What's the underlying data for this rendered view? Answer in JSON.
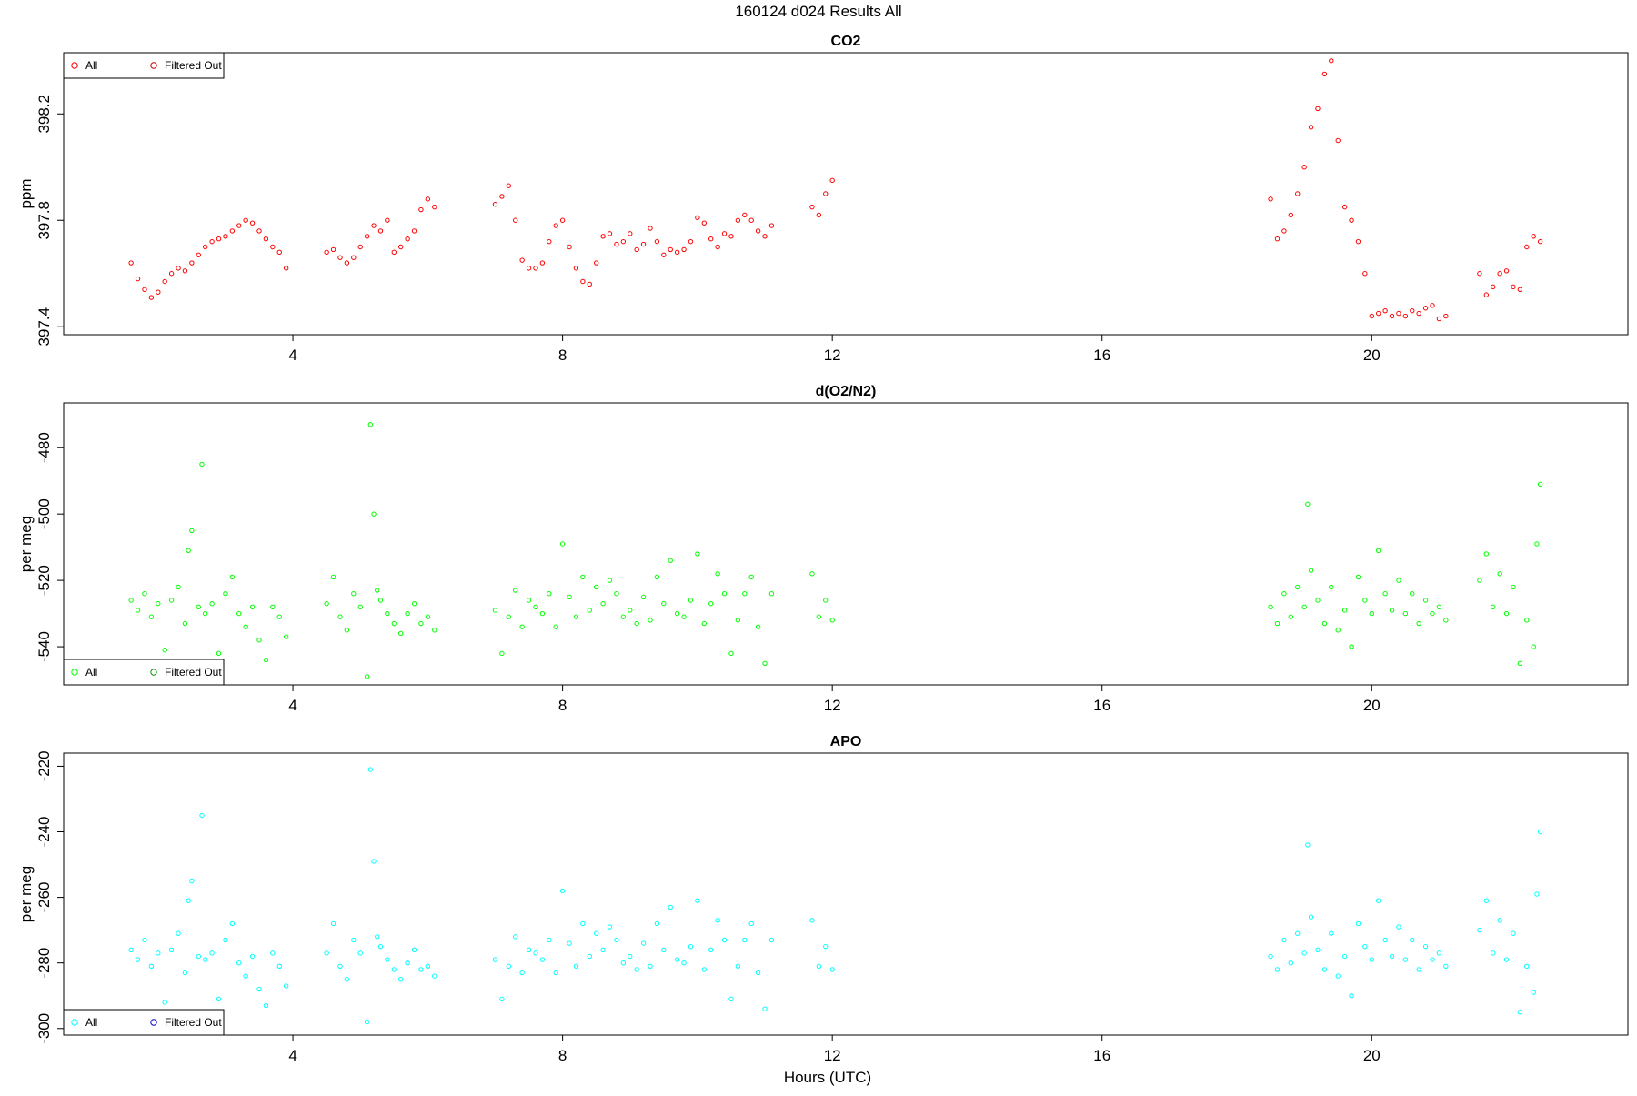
{
  "figure": {
    "title": "160124   d024   Results All",
    "xlabel": "Hours (UTC)"
  },
  "chart_data": [
    {
      "type": "scatter",
      "title": "CO2",
      "xlabel": "",
      "ylabel": "ppm",
      "xlim": [
        0.6,
        23.8
      ],
      "ylim": [
        397.37,
        398.43
      ],
      "xticks": [
        "4",
        "8",
        "12",
        "16",
        "20"
      ],
      "yticks": [
        "397.4",
        "397.8",
        "398.2"
      ],
      "legend": {
        "position": "top-left",
        "entries": [
          "All",
          "Filtered Out"
        ]
      },
      "series": [
        {
          "name": "All",
          "color": "#ff0000",
          "x": [
            1.6,
            1.7,
            1.8,
            1.9,
            2.0,
            2.1,
            2.2,
            2.3,
            2.4,
            2.5,
            2.6,
            2.7,
            2.8,
            2.9,
            3.0,
            3.1,
            3.2,
            3.3,
            3.4,
            3.5,
            3.6,
            3.7,
            3.8,
            3.9,
            4.5,
            4.6,
            4.7,
            4.8,
            4.9,
            5.0,
            5.1,
            5.2,
            5.3,
            5.4,
            5.5,
            5.6,
            5.7,
            5.8,
            5.9,
            6.0,
            6.1,
            7.0,
            7.1,
            7.2,
            7.3,
            7.4,
            7.5,
            7.6,
            7.7,
            7.8,
            7.9,
            8.0,
            8.1,
            8.2,
            8.3,
            8.4,
            8.5,
            8.6,
            8.7,
            8.8,
            8.9,
            9.0,
            9.1,
            9.2,
            9.3,
            9.4,
            9.5,
            9.6,
            9.7,
            9.8,
            9.9,
            10.0,
            10.1,
            10.2,
            10.3,
            10.4,
            10.5,
            10.6,
            10.7,
            10.8,
            10.9,
            11.0,
            11.1,
            11.7,
            11.8,
            11.9,
            12.0,
            18.5,
            18.6,
            18.7,
            18.8,
            18.9,
            19.0,
            19.1,
            19.2,
            19.3,
            19.4,
            19.5,
            19.6,
            19.7,
            19.8,
            19.9,
            20.0,
            20.1,
            20.2,
            20.3,
            20.4,
            20.5,
            20.6,
            20.7,
            20.8,
            20.9,
            21.0,
            21.1,
            21.6,
            21.7,
            21.8,
            21.9,
            22.0,
            22.1,
            22.2,
            22.3,
            22.4,
            22.5
          ],
          "y": [
            397.64,
            397.58,
            397.54,
            397.51,
            397.53,
            397.57,
            397.6,
            397.62,
            397.61,
            397.64,
            397.67,
            397.7,
            397.72,
            397.73,
            397.74,
            397.76,
            397.78,
            397.8,
            397.79,
            397.76,
            397.73,
            397.7,
            397.68,
            397.62,
            397.68,
            397.69,
            397.66,
            397.64,
            397.66,
            397.7,
            397.74,
            397.78,
            397.76,
            397.8,
            397.68,
            397.7,
            397.73,
            397.76,
            397.84,
            397.88,
            397.85,
            397.86,
            397.89,
            397.93,
            397.8,
            397.65,
            397.62,
            397.62,
            397.64,
            397.72,
            397.78,
            397.8,
            397.7,
            397.62,
            397.57,
            397.56,
            397.64,
            397.74,
            397.75,
            397.71,
            397.72,
            397.75,
            397.69,
            397.71,
            397.77,
            397.72,
            397.67,
            397.69,
            397.68,
            397.69,
            397.72,
            397.81,
            397.79,
            397.73,
            397.7,
            397.75,
            397.74,
            397.8,
            397.82,
            397.8,
            397.76,
            397.74,
            397.78,
            397.85,
            397.82,
            397.9,
            397.95,
            397.88,
            397.73,
            397.76,
            397.82,
            397.9,
            398.0,
            398.15,
            398.22,
            398.35,
            398.4,
            398.1,
            397.85,
            397.8,
            397.72,
            397.6,
            397.44,
            397.45,
            397.46,
            397.44,
            397.45,
            397.44,
            397.46,
            397.45,
            397.47,
            397.48,
            397.43,
            397.44,
            397.6,
            397.52,
            397.55,
            397.6,
            397.61,
            397.55,
            397.54,
            397.7,
            397.74,
            397.72
          ]
        },
        {
          "name": "Filtered Out",
          "color": "#cc0000",
          "x": [],
          "y": []
        }
      ]
    },
    {
      "type": "scatter",
      "title": "d(O2/N2)",
      "xlabel": "",
      "ylabel": "per meg",
      "xlim": [
        0.6,
        23.8
      ],
      "ylim": [
        -551.5,
        -466.5
      ],
      "xticks": [
        "4",
        "8",
        "12",
        "16",
        "20"
      ],
      "yticks": [
        "-540",
        "-520",
        "-500",
        "-480"
      ],
      "legend": {
        "position": "bottom-left",
        "entries": [
          "All",
          "Filtered Out"
        ]
      },
      "series": [
        {
          "name": "All",
          "color": "#00ff00",
          "x": [
            1.6,
            1.7,
            1.8,
            1.9,
            2.0,
            2.1,
            2.2,
            2.3,
            2.4,
            2.45,
            2.5,
            2.6,
            2.65,
            2.7,
            2.8,
            2.9,
            3.0,
            3.1,
            3.2,
            3.3,
            3.4,
            3.5,
            3.6,
            3.7,
            3.8,
            3.9,
            4.5,
            4.6,
            4.7,
            4.8,
            4.9,
            5.0,
            5.1,
            5.15,
            5.2,
            5.25,
            5.3,
            5.4,
            5.5,
            5.6,
            5.7,
            5.8,
            5.9,
            6.0,
            6.1,
            7.0,
            7.1,
            7.2,
            7.3,
            7.4,
            7.5,
            7.6,
            7.7,
            7.8,
            7.9,
            8.0,
            8.1,
            8.2,
            8.3,
            8.4,
            8.5,
            8.6,
            8.7,
            8.8,
            8.9,
            9.0,
            9.1,
            9.2,
            9.3,
            9.4,
            9.5,
            9.6,
            9.7,
            9.8,
            9.9,
            10.0,
            10.1,
            10.2,
            10.3,
            10.4,
            10.5,
            10.6,
            10.7,
            10.8,
            10.9,
            11.0,
            11.1,
            11.7,
            11.8,
            11.9,
            12.0,
            18.5,
            18.6,
            18.7,
            18.8,
            18.9,
            19.0,
            19.05,
            19.1,
            19.2,
            19.3,
            19.4,
            19.5,
            19.6,
            19.7,
            19.8,
            19.9,
            20.0,
            20.1,
            20.2,
            20.3,
            20.4,
            20.5,
            20.6,
            20.7,
            20.8,
            20.9,
            21.0,
            21.1,
            21.6,
            21.7,
            21.8,
            21.9,
            22.0,
            22.1,
            22.2,
            22.3,
            22.4,
            22.45,
            22.5
          ],
          "y": [
            -526,
            -529,
            -524,
            -531,
            -527,
            -541,
            -526,
            -522,
            -533,
            -511,
            -505,
            -528,
            -485,
            -530,
            -527,
            -542,
            -524,
            -519,
            -530,
            -534,
            -528,
            -538,
            -544,
            -528,
            -531,
            -537,
            -527,
            -519,
            -531,
            -535,
            -524,
            -528,
            -549,
            -473,
            -500,
            -523,
            -526,
            -530,
            -533,
            -536,
            -530,
            -527,
            -533,
            -531,
            -535,
            -529,
            -542,
            -531,
            -523,
            -534,
            -526,
            -528,
            -530,
            -524,
            -534,
            -509,
            -525,
            -531,
            -519,
            -529,
            -522,
            -527,
            -520,
            -524,
            -531,
            -529,
            -533,
            -525,
            -532,
            -519,
            -527,
            -514,
            -530,
            -531,
            -526,
            -512,
            -533,
            -527,
            -518,
            -524,
            -542,
            -532,
            -524,
            -519,
            -534,
            -545,
            -524,
            -518,
            -531,
            -526,
            -532,
            -528,
            -533,
            -524,
            -531,
            -522,
            -528,
            -497,
            -517,
            -526,
            -533,
            -522,
            -535,
            -529,
            -540,
            -519,
            -526,
            -530,
            -511,
            -524,
            -529,
            -520,
            -530,
            -524,
            -533,
            -526,
            -530,
            -528,
            -532,
            -520,
            -512,
            -528,
            -518,
            -530,
            -522,
            -545,
            -532,
            -540,
            -509,
            -491
          ],
          "comment": ""
        },
        {
          "name": "Filtered Out",
          "color": "#009900",
          "x": [],
          "y": []
        }
      ]
    },
    {
      "type": "scatter",
      "title": "APO",
      "xlabel": "Hours (UTC)",
      "ylabel": "per meg",
      "xlim": [
        0.6,
        23.8
      ],
      "ylim": [
        -302,
        -216
      ],
      "xticks": [
        "4",
        "8",
        "12",
        "16",
        "20"
      ],
      "yticks": [
        "-300",
        "-280",
        "-260",
        "-240",
        "-220"
      ],
      "legend": {
        "position": "bottom-left",
        "entries": [
          "All",
          "Filtered Out"
        ]
      },
      "series": [
        {
          "name": "All",
          "color": "#00ffff",
          "x": [
            1.6,
            1.7,
            1.8,
            1.9,
            2.0,
            2.1,
            2.2,
            2.3,
            2.4,
            2.45,
            2.5,
            2.6,
            2.65,
            2.7,
            2.8,
            2.9,
            3.0,
            3.1,
            3.2,
            3.3,
            3.4,
            3.5,
            3.6,
            3.7,
            3.8,
            3.9,
            4.5,
            4.6,
            4.7,
            4.8,
            4.9,
            5.0,
            5.1,
            5.15,
            5.2,
            5.25,
            5.3,
            5.4,
            5.5,
            5.6,
            5.7,
            5.8,
            5.9,
            6.0,
            6.1,
            7.0,
            7.1,
            7.2,
            7.3,
            7.4,
            7.5,
            7.6,
            7.7,
            7.8,
            7.9,
            8.0,
            8.1,
            8.2,
            8.3,
            8.4,
            8.5,
            8.6,
            8.7,
            8.8,
            8.9,
            9.0,
            9.1,
            9.2,
            9.3,
            9.4,
            9.5,
            9.6,
            9.7,
            9.8,
            9.9,
            10.0,
            10.1,
            10.2,
            10.3,
            10.4,
            10.5,
            10.6,
            10.7,
            10.8,
            10.9,
            11.0,
            11.1,
            11.7,
            11.8,
            11.9,
            12.0,
            18.5,
            18.6,
            18.7,
            18.8,
            18.9,
            19.0,
            19.05,
            19.1,
            19.2,
            19.3,
            19.4,
            19.5,
            19.6,
            19.7,
            19.8,
            19.9,
            20.0,
            20.1,
            20.2,
            20.3,
            20.4,
            20.5,
            20.6,
            20.7,
            20.8,
            20.9,
            21.0,
            21.1,
            21.6,
            21.7,
            21.8,
            21.9,
            22.0,
            22.1,
            22.2,
            22.3,
            22.4,
            22.45,
            22.5
          ],
          "y": [
            -276,
            -279,
            -273,
            -281,
            -277,
            -292,
            -276,
            -271,
            -283,
            -261,
            -255,
            -278,
            -235,
            -279,
            -277,
            -291,
            -273,
            -268,
            -280,
            -284,
            -278,
            -288,
            -293,
            -277,
            -281,
            -287,
            -277,
            -268,
            -281,
            -285,
            -273,
            -277,
            -298,
            -221,
            -249,
            -272,
            -275,
            -279,
            -282,
            -285,
            -280,
            -276,
            -282,
            -281,
            -284,
            -279,
            -291,
            -281,
            -272,
            -283,
            -276,
            -277,
            -279,
            -273,
            -283,
            -258,
            -274,
            -281,
            -268,
            -278,
            -271,
            -276,
            -269,
            -273,
            -280,
            -278,
            -282,
            -274,
            -281,
            -268,
            -276,
            -263,
            -279,
            -280,
            -275,
            -261,
            -282,
            -276,
            -267,
            -273,
            -291,
            -281,
            -273,
            -268,
            -283,
            -294,
            -273,
            -267,
            -281,
            -275,
            -282,
            -278,
            -282,
            -273,
            -280,
            -271,
            -277,
            -244,
            -266,
            -276,
            -282,
            -271,
            -284,
            -278,
            -290,
            -268,
            -275,
            -279,
            -261,
            -273,
            -278,
            -269,
            -279,
            -273,
            -282,
            -275,
            -279,
            -277,
            -281,
            -270,
            -261,
            -277,
            -267,
            -279,
            -271,
            -295,
            -281,
            -289,
            -259,
            -240
          ]
        },
        {
          "name": "Filtered Out",
          "color": "#0000cc",
          "x": [],
          "y": []
        }
      ]
    }
  ]
}
